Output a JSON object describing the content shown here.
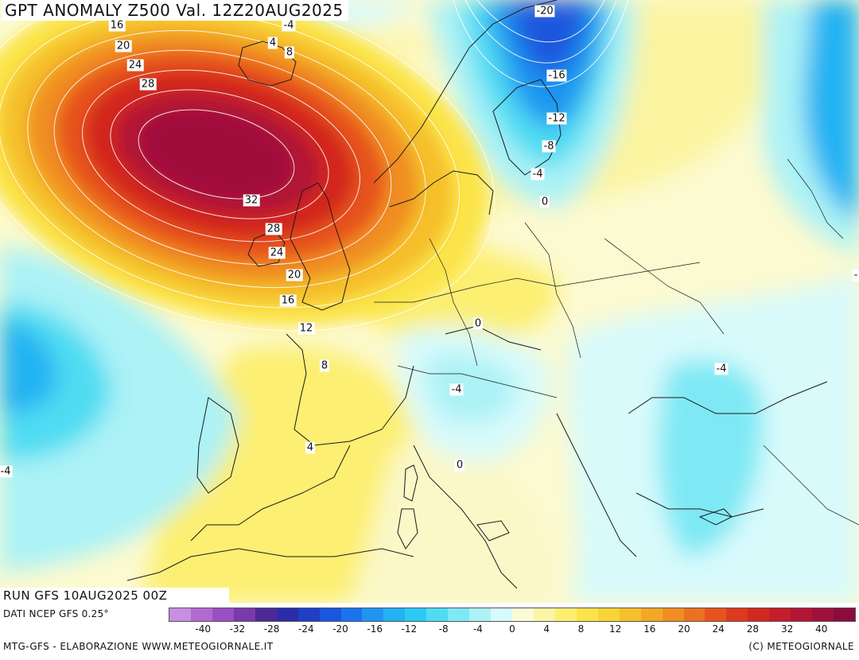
{
  "title": "GPT ANOMALY Z500 Val. 12Z20AUG2025",
  "run_info": "RUN GFS 10AUG2025 00Z",
  "data_source": "DATI NCEP GFS 0.25°",
  "footer_left": "MTG-GFS - ELABORAZIONE WWW.METEOGIORNALE.IT",
  "footer_right": "(C) METEOGIORNALE",
  "legend": {
    "tick_labels": [
      "-40",
      "-32",
      "-28",
      "-24",
      "-20",
      "-16",
      "-12",
      "-8",
      "-4",
      "0",
      "4",
      "8",
      "12",
      "16",
      "20",
      "24",
      "28",
      "32",
      "40"
    ],
    "colors": [
      "#c88ee0",
      "#b26ad2",
      "#9a4fc4",
      "#7a3aab",
      "#4b2a96",
      "#2a2ca8",
      "#1f3fc6",
      "#1a56de",
      "#1a74ec",
      "#1f95f0",
      "#22b2f2",
      "#2cc9f2",
      "#4fdcf2",
      "#7ee9f4",
      "#acf2f6",
      "#d8fafb",
      "#fbfbd6",
      "#fbf6a4",
      "#fcef72",
      "#fbe44a",
      "#f8d436",
      "#f5c02c",
      "#f2a826",
      "#f08e22",
      "#ec711e",
      "#e6531c",
      "#dd3a1e",
      "#d3281f",
      "#c51d2a",
      "#b21535",
      "#a0103c",
      "#8c0b3e"
    ]
  },
  "contour_labels": [
    {
      "text": "16"
    },
    {
      "text": "20"
    },
    {
      "text": "24"
    },
    {
      "text": "28"
    },
    {
      "text": "-4"
    },
    {
      "text": "4"
    },
    {
      "text": "8"
    },
    {
      "text": "32"
    },
    {
      "text": "28"
    },
    {
      "text": "24"
    },
    {
      "text": "20"
    },
    {
      "text": "16"
    },
    {
      "text": "12"
    },
    {
      "text": "8"
    },
    {
      "text": "4"
    },
    {
      "text": "-20"
    },
    {
      "text": "-16"
    },
    {
      "text": "-12"
    },
    {
      "text": "-8"
    },
    {
      "text": "-4"
    },
    {
      "text": "0"
    },
    {
      "text": "0"
    },
    {
      "text": "-4"
    },
    {
      "text": "0"
    },
    {
      "text": "-4"
    },
    {
      "text": "-4"
    },
    {
      "text": "-"
    }
  ]
}
